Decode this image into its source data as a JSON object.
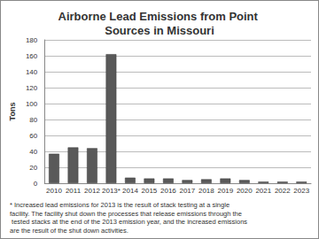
{
  "chart_data": {
    "type": "bar",
    "title": "Airborne Lead Emissions from Point Sources in Missouri",
    "ylabel": "Tons",
    "categories": [
      "2010",
      "2011",
      "2012",
      "2013*",
      "2014",
      "2015",
      "2016",
      "2017",
      "2018",
      "2019",
      "2020",
      "2021",
      "2022",
      "2023"
    ],
    "values": [
      37,
      45,
      44,
      162,
      7,
      6,
      6,
      4,
      5,
      6,
      4,
      2,
      2,
      2
    ],
    "color": "#595959",
    "ylim": [
      0,
      180
    ],
    "yticks": [
      0,
      20,
      40,
      60,
      80,
      100,
      120,
      140,
      160,
      180
    ],
    "grid": true,
    "annotation": "* Increased lead emissions for 2013 is the result of stack testing at a single facility. The facility shut down the processes that release emissions through the tested stacks at the end of the 2013 emission year, and the increased emissions are the result of the shut down activities."
  }
}
